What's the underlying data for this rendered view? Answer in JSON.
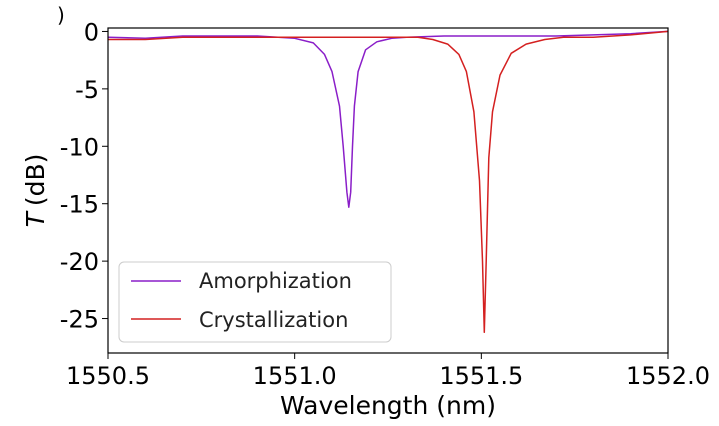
{
  "chart_data": {
    "type": "line",
    "xlabel": "Wavelength (nm)",
    "ylabel_symbol": "T",
    "ylabel_unit": "(dB)",
    "xlim": [
      1550.5,
      1552.0
    ],
    "ylim": [
      -28,
      0.3
    ],
    "x_ticks": [
      1550.5,
      1551.0,
      1551.5,
      1552.0
    ],
    "x_tick_labels": [
      "1550.5",
      "1551.0",
      "1551.5",
      "1552.0"
    ],
    "y_ticks": [
      0,
      -5,
      -10,
      -15,
      -20,
      -25
    ],
    "y_tick_labels": [
      "0",
      "-5",
      "-10",
      "-15",
      "-20",
      "-25"
    ],
    "grid": false,
    "legend_placement": "lower-left",
    "series": [
      {
        "name": "Amorphization",
        "color": "#8a1ec8",
        "x": [
          1550.5,
          1550.6,
          1550.7,
          1550.8,
          1550.9,
          1551.0,
          1551.05,
          1551.08,
          1551.1,
          1551.12,
          1551.13,
          1551.14,
          1551.145,
          1551.15,
          1551.155,
          1551.16,
          1551.17,
          1551.19,
          1551.22,
          1551.26,
          1551.3,
          1551.4,
          1551.5,
          1551.6,
          1551.7,
          1551.8,
          1551.9,
          1552.0
        ],
        "y": [
          -0.5,
          -0.6,
          -0.4,
          -0.4,
          -0.4,
          -0.6,
          -1.0,
          -2.0,
          -3.5,
          -6.5,
          -10.0,
          -14.0,
          -15.3,
          -14.0,
          -10.0,
          -6.5,
          -3.5,
          -1.6,
          -0.9,
          -0.6,
          -0.5,
          -0.4,
          -0.4,
          -0.4,
          -0.4,
          -0.3,
          -0.2,
          0.0
        ]
      },
      {
        "name": "Crystallization",
        "color": "#d42020",
        "x": [
          1550.5,
          1550.6,
          1550.7,
          1550.8,
          1550.9,
          1551.0,
          1551.1,
          1551.2,
          1551.3,
          1551.33,
          1551.37,
          1551.41,
          1551.44,
          1551.46,
          1551.48,
          1551.495,
          1551.503,
          1551.508,
          1551.513,
          1551.52,
          1551.53,
          1551.55,
          1551.58,
          1551.62,
          1551.67,
          1551.72,
          1551.8,
          1551.9,
          1552.0
        ],
        "y": [
          -0.7,
          -0.7,
          -0.5,
          -0.5,
          -0.5,
          -0.5,
          -0.5,
          -0.5,
          -0.5,
          -0.5,
          -0.7,
          -1.1,
          -2.0,
          -3.5,
          -7.0,
          -13.0,
          -20.0,
          -26.2,
          -20.0,
          -11.0,
          -7.0,
          -3.8,
          -1.9,
          -1.1,
          -0.7,
          -0.5,
          -0.5,
          -0.3,
          0.0
        ]
      }
    ]
  }
}
